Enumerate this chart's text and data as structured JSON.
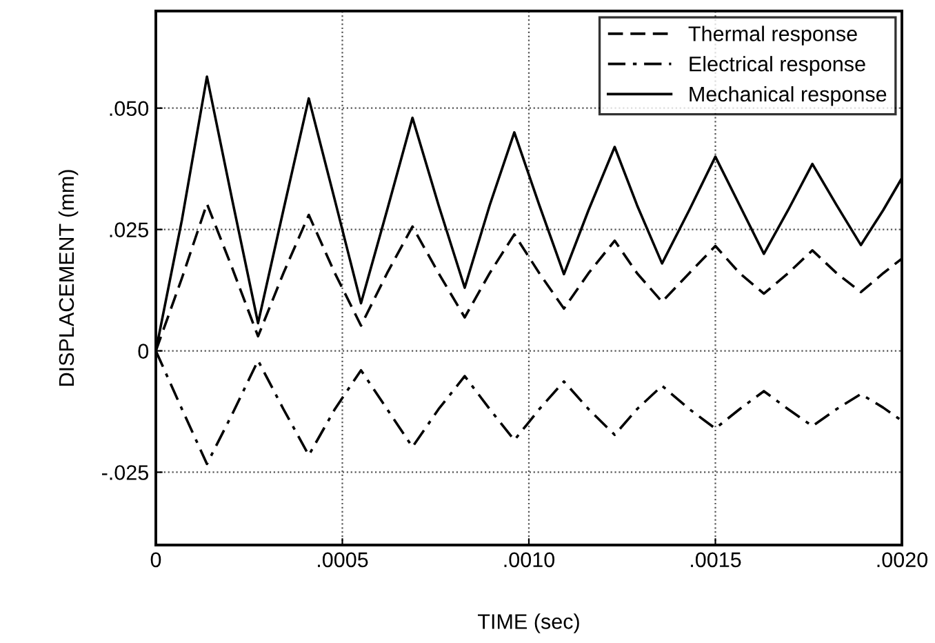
{
  "chart_data": {
    "type": "line",
    "xlabel": "TIME (sec)",
    "ylabel": "DISPLACEMENT (mm)",
    "x": [
      0,
      7e-05,
      0.000137,
      0.000205,
      0.000274,
      0.000342,
      0.00041,
      0.00048,
      0.00055,
      0.00062,
      0.000688,
      0.000758,
      0.000828,
      0.000895,
      0.000961,
      0.001028,
      0.001094,
      0.00116,
      0.00123,
      0.00129,
      0.001357,
      0.00143,
      0.0015,
      0.001565,
      0.00163,
      0.001695,
      0.00176,
      0.001825,
      0.00189,
      0.00195,
      0.002
    ],
    "series": [
      {
        "name": "Thermal response",
        "color": "#000000",
        "line_style": "dashed",
        "values": [
          0,
          0.015,
          0.0303,
          0.017,
          0.003,
          0.016,
          0.028,
          0.016,
          0.0052,
          0.016,
          0.0256,
          0.016,
          0.0069,
          0.016,
          0.024,
          0.016,
          0.0087,
          0.016,
          0.0227,
          0.016,
          0.0101,
          0.016,
          0.0216,
          0.016,
          0.0118,
          0.016,
          0.0207,
          0.016,
          0.0121,
          0.016,
          0.019
        ]
      },
      {
        "name": "Electrical response",
        "color": "#000000",
        "line_style": "dashdot",
        "values": [
          0,
          -0.012,
          -0.0233,
          -0.013,
          -0.002,
          -0.012,
          -0.0215,
          -0.012,
          -0.004,
          -0.012,
          -0.0198,
          -0.012,
          -0.0052,
          -0.012,
          -0.0184,
          -0.012,
          -0.0063,
          -0.012,
          -0.0173,
          -0.012,
          -0.0072,
          -0.012,
          -0.016,
          -0.012,
          -0.0083,
          -0.012,
          -0.0155,
          -0.012,
          -0.0089,
          -0.0117,
          -0.0144
        ]
      },
      {
        "name": "Mechanical response",
        "color": "#000000",
        "line_style": "solid",
        "values": [
          0,
          0.027,
          0.0565,
          0.031,
          0.0057,
          0.029,
          0.052,
          0.031,
          0.0098,
          0.029,
          0.048,
          0.03,
          0.013,
          0.03,
          0.045,
          0.03,
          0.0158,
          0.029,
          0.042,
          0.03,
          0.018,
          0.029,
          0.04,
          0.03,
          0.02,
          0.029,
          0.0385,
          0.03,
          0.0218,
          0.029,
          0.0356
        ]
      }
    ],
    "xlim": [
      0,
      0.002
    ],
    "ylim": [
      -0.04,
      0.07
    ],
    "xticks": [
      {
        "value": 0,
        "label": "0"
      },
      {
        "value": 0.0005,
        "label": ".0005"
      },
      {
        "value": 0.001,
        "label": ".0010"
      },
      {
        "value": 0.0015,
        "label": ".0015"
      },
      {
        "value": 0.002,
        "label": ".0020"
      }
    ],
    "yticks": [
      {
        "value": -0.025,
        "label": "-.025"
      },
      {
        "value": 0,
        "label": "0"
      },
      {
        "value": 0.025,
        "label": ".025"
      },
      {
        "value": 0.05,
        "label": ".050"
      }
    ],
    "grid": true,
    "legend": "top right",
    "marker": "none"
  }
}
